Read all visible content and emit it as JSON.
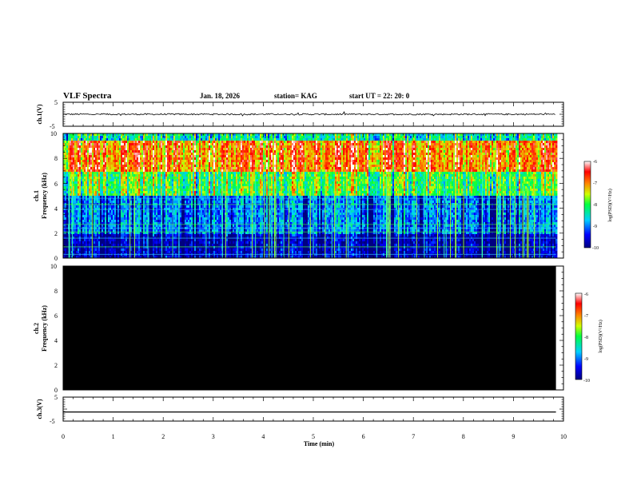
{
  "header": {
    "title": "VLF Spectra",
    "date": "Jan. 18, 2026",
    "station": "station= KAG",
    "start_ut": "start  UT  =   22: 20: 0"
  },
  "chart_data": {
    "type": "heatmap",
    "x_axis": {
      "label": "Time  (min)",
      "range": [
        0,
        10
      ],
      "ticks": [
        "0",
        "1",
        "2",
        "3",
        "4",
        "5",
        "6",
        "7",
        "8",
        "9",
        "10"
      ],
      "data_end": 9.85
    },
    "panels": [
      {
        "name": "ch.1 waveform",
        "ylabel": "ch.1(V)",
        "ylim": [
          -5,
          5
        ],
        "yticks": [
          "5",
          "-5"
        ],
        "trace_level": 0,
        "noise_amplitude": 0.3
      },
      {
        "name": "ch.1 spectrogram",
        "ylabel_top": "ch.1",
        "ylabel": "Frequency  (kHz)",
        "ylim": [
          0,
          10
        ],
        "yticks": [
          "0",
          "2",
          "4",
          "6",
          "8",
          "10"
        ],
        "colorbar": {
          "label": "log(PSD)(V²/Hz)",
          "range": [
            -10,
            -6
          ],
          "ticks": [
            "-6",
            "-7",
            "-8",
            "-9",
            "-10"
          ]
        },
        "bands": [
          {
            "f_from": 0,
            "f_to": 2,
            "log_psd": -9.6
          },
          {
            "f_from": 2,
            "f_to": 5,
            "log_psd": -8.9
          },
          {
            "f_from": 5,
            "f_to": 7,
            "log_psd": -7.8
          },
          {
            "f_from": 7,
            "f_to": 9.5,
            "log_psd": -6.8
          },
          {
            "f_from": 9.5,
            "f_to": 10,
            "log_psd": -8.2
          }
        ]
      },
      {
        "name": "ch.2 spectrogram",
        "ylabel_top": "ch.2",
        "ylabel": "Frequency  (kHz)",
        "ylim": [
          0,
          10
        ],
        "yticks": [
          "0",
          "2",
          "4",
          "6",
          "8",
          "10"
        ],
        "colorbar": {
          "label": "log(PSD)(V²/Hz)",
          "range": [
            -10,
            -6
          ],
          "ticks": [
            "-6",
            "-7",
            "-8",
            "-9",
            "-10"
          ]
        },
        "fill": "no signal (black)"
      },
      {
        "name": "ch.3 waveform",
        "ylabel": "ch.3(V)",
        "ylim": [
          -5,
          5
        ],
        "yticks": [
          "5",
          "-5"
        ],
        "trace_level": -1.2,
        "noise_amplitude": 0
      }
    ]
  }
}
